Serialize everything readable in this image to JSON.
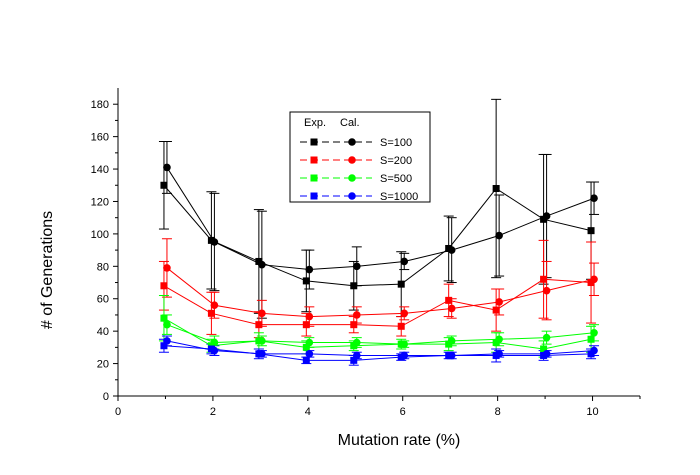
{
  "chart_data": {
    "type": "line",
    "xlabel": "Mutation rate (%)",
    "ylabel": "# of Generations",
    "xlim": [
      0,
      11
    ],
    "ylim": [
      0,
      190
    ],
    "xticks": [
      0,
      2,
      4,
      6,
      8,
      10
    ],
    "yticks": [
      0,
      20,
      40,
      60,
      80,
      100,
      120,
      140,
      160,
      180
    ],
    "x": [
      1,
      2,
      3,
      4,
      5,
      6,
      7,
      8,
      9,
      10
    ],
    "legend": {
      "placement": "top-center",
      "header_exp": "Exp.",
      "header_cal": "Cal."
    },
    "series": [
      {
        "name": "S=100",
        "color": "#000000",
        "exp": [
          130,
          96,
          83,
          71,
          68,
          69,
          91,
          128,
          109,
          102
        ],
        "exp_err": [
          27,
          30,
          32,
          19,
          15,
          20,
          20,
          55,
          40,
          30
        ],
        "cal": [
          141,
          95,
          81,
          78,
          80,
          83,
          90,
          99,
          111,
          122
        ],
        "cal_err": [
          16,
          30,
          33,
          12,
          12,
          5,
          20,
          25,
          38,
          10
        ]
      },
      {
        "name": "S=200",
        "color": "#ff0000",
        "exp": [
          68,
          51,
          44,
          44,
          44,
          43,
          59,
          53,
          72,
          70
        ],
        "exp_err": [
          15,
          13,
          8,
          7,
          5,
          6,
          10,
          13,
          24,
          25
        ],
        "cal": [
          79,
          56,
          51,
          49,
          50,
          51,
          54,
          58,
          65,
          72
        ],
        "cal_err": [
          18,
          8,
          8,
          6,
          5,
          4,
          6,
          8,
          18,
          10
        ]
      },
      {
        "name": "S=500",
        "color": "#00ff00",
        "exp": [
          48,
          31,
          34,
          30,
          31,
          32,
          32,
          33,
          29,
          35
        ],
        "exp_err": [
          14,
          4,
          5,
          4,
          3,
          3,
          4,
          6,
          5,
          8
        ],
        "cal": [
          44,
          33,
          34,
          33,
          33,
          32,
          34,
          35,
          36,
          39
        ],
        "cal_err": [
          6,
          4,
          3,
          3,
          3,
          2,
          3,
          4,
          4,
          5
        ]
      },
      {
        "name": "S=1000",
        "color": "#0000ff",
        "exp": [
          31,
          29,
          26,
          22,
          22,
          24,
          25,
          25,
          25,
          26
        ],
        "exp_err": [
          4,
          3,
          3,
          2,
          3,
          2,
          2,
          4,
          3,
          3
        ],
        "cal": [
          34,
          28,
          26,
          26,
          25,
          25,
          25,
          26,
          26,
          28
        ],
        "cal_err": [
          3,
          3,
          2,
          2,
          2,
          2,
          2,
          2,
          2,
          3
        ]
      }
    ]
  }
}
